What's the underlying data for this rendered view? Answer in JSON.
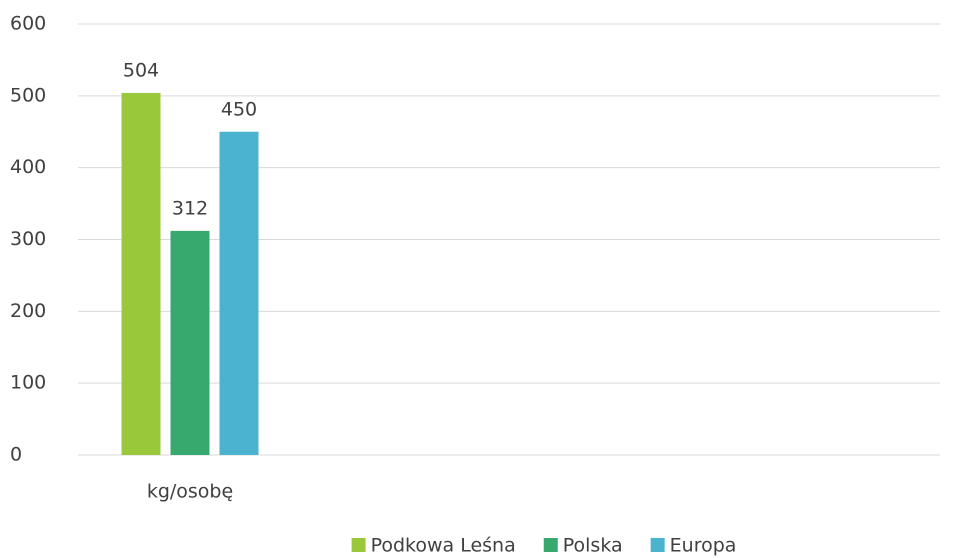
{
  "chart_data": {
    "type": "bar",
    "categories": [
      "kg/osobę"
    ],
    "series": [
      {
        "name": "Podkowa Leśna",
        "color": "#99c93a",
        "values": [
          504
        ]
      },
      {
        "name": "Polska",
        "color": "#37a86e",
        "values": [
          312
        ]
      },
      {
        "name": "Europa",
        "color": "#4bb3d0",
        "values": [
          450
        ]
      }
    ],
    "ylim": [
      0,
      600
    ],
    "yticks": [
      0,
      100,
      200,
      300,
      400,
      500,
      600
    ],
    "grid": true,
    "legend": "bottom"
  }
}
